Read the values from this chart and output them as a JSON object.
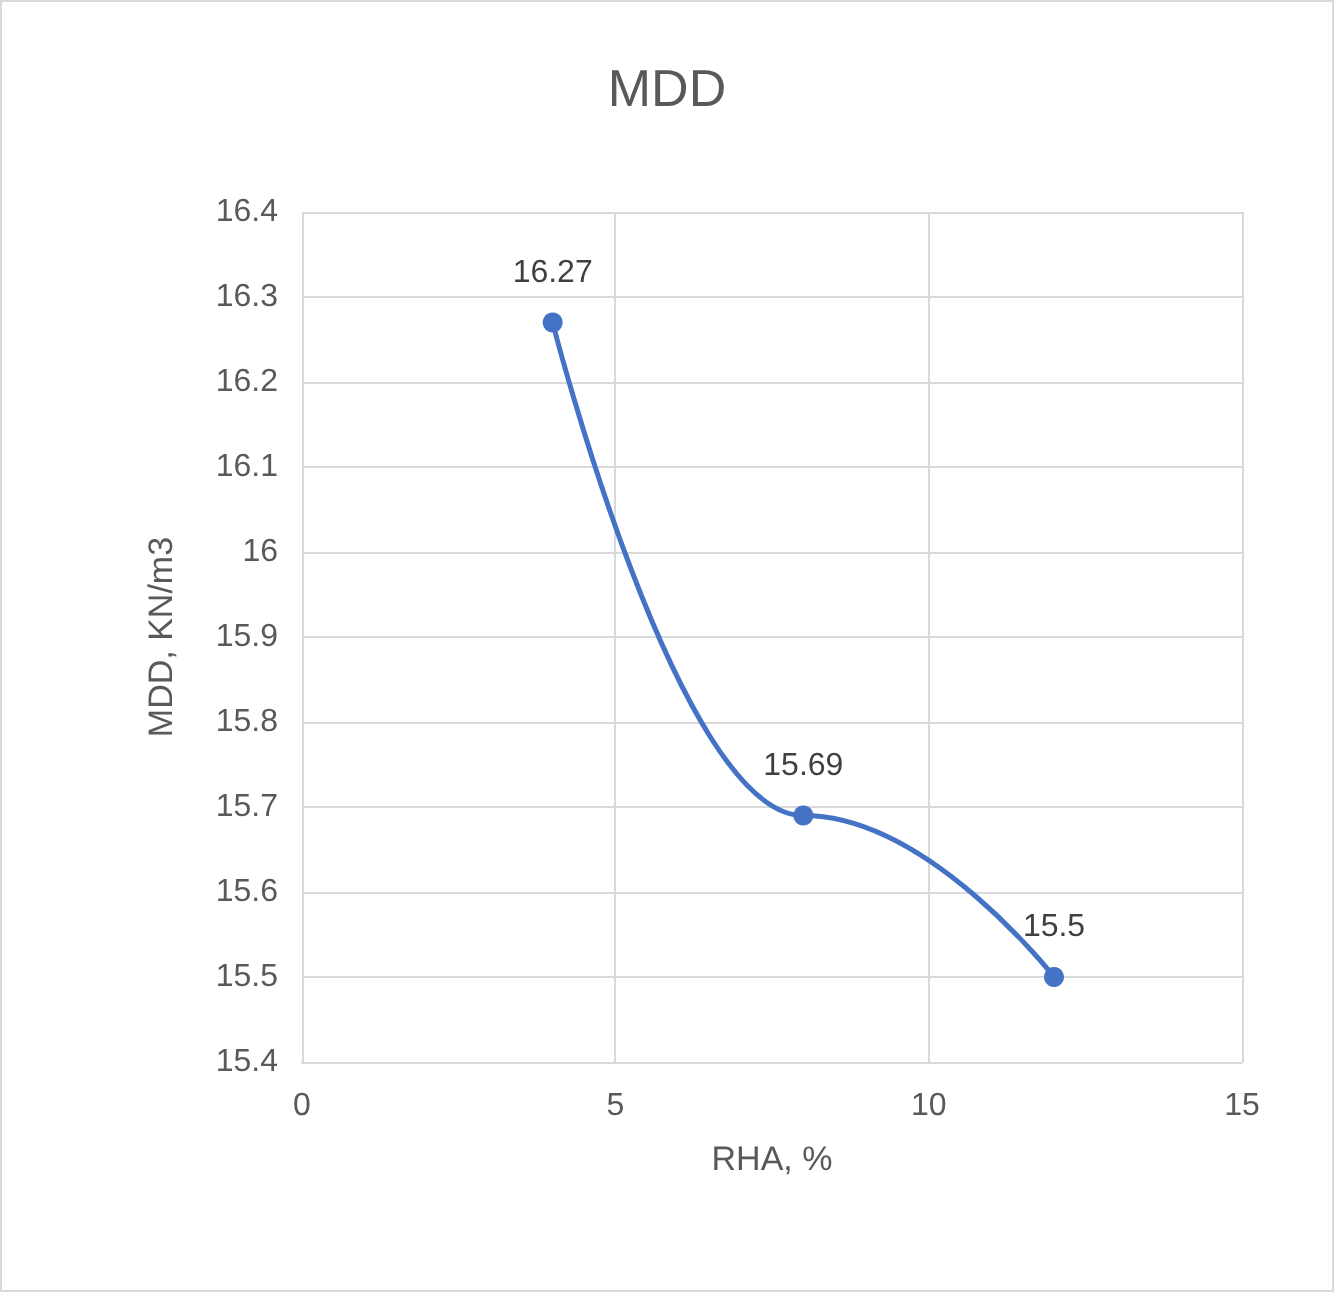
{
  "chart_data": {
    "type": "line",
    "title": "MDD",
    "xlabel": "RHA, %",
    "ylabel": "MDD, KN/m3",
    "x": [
      4,
      8,
      12
    ],
    "series": [
      {
        "color": "#4472c4",
        "values": [
          16.27,
          15.69,
          15.5
        ]
      }
    ],
    "xlim": [
      0,
      15
    ],
    "xticks": [
      0,
      5,
      10,
      15
    ],
    "ylim": [
      15.4,
      16.4
    ],
    "yticks": [
      15.4,
      15.5,
      15.6,
      15.7,
      15.8,
      15.9,
      16,
      16.1,
      16.2,
      16.3,
      16.4
    ],
    "grid": true,
    "marker": "circle",
    "data_labels": true
  }
}
